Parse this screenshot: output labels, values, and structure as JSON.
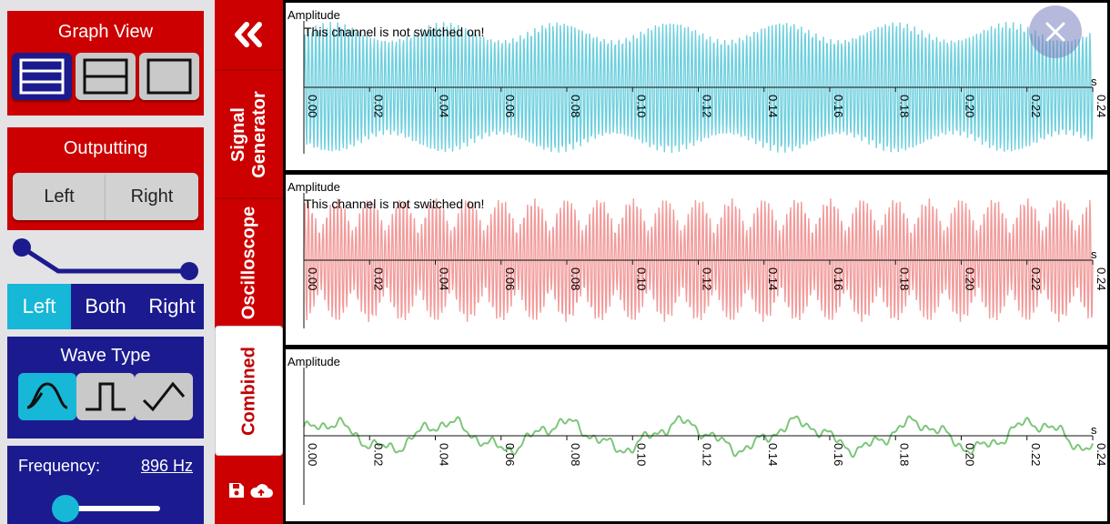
{
  "graph_view": {
    "title": "Graph View",
    "options": [
      "three-graphs",
      "two-graphs",
      "single-graph"
    ],
    "selected": "three-graphs"
  },
  "outputting": {
    "title": "Outputting",
    "left_label": "Left",
    "right_label": "Right"
  },
  "channel": {
    "left_label": "Left",
    "both_label": "Both",
    "right_label": "Right",
    "selected": "Left"
  },
  "wave_type": {
    "title": "Wave Type",
    "options": [
      "sine",
      "square",
      "triangle"
    ],
    "selected": "sine"
  },
  "frequency": {
    "label": "Frequency:",
    "value": "896 Hz",
    "slider_fraction": 0.12
  },
  "tabs": {
    "collapse_icon": "double-chevron-left",
    "signal_generator": "Signal\nGenerator",
    "oscilloscope": "Oscilloscope",
    "combined": "Combined",
    "save_icons": [
      "save-icon",
      "cloud-upload-icon"
    ],
    "active": "Combined"
  },
  "graphs": {
    "amplitude_label": "Amplitude",
    "notice": "This channel is not switched on!",
    "unit": "s",
    "ticks": [
      "0.00",
      "0.02",
      "0.04",
      "0.06",
      "0.08",
      "0.10",
      "0.12",
      "0.14",
      "0.16",
      "0.18",
      "0.20",
      "0.22",
      "0.24"
    ],
    "colors": {
      "top": "#6fd0de",
      "middle": "#f29b9b",
      "bottom": "#7cc67a"
    }
  },
  "chart_data": [
    {
      "type": "line",
      "title": "",
      "ylabel": "Amplitude",
      "xlabel": "s",
      "xlim": [
        0,
        0.24
      ],
      "series": [
        {
          "values": []
        }
      ]
    },
    {
      "type": "line",
      "title": "",
      "ylabel": "Amplitude",
      "xlabel": "s",
      "xlim": [
        0,
        0.24
      ],
      "series": [
        {
          "values": []
        }
      ]
    },
    {
      "type": "line",
      "title": "",
      "ylabel": "Amplitude",
      "xlabel": "s",
      "xlim": [
        0,
        0.24
      ],
      "series": [
        {
          "values": []
        }
      ]
    }
  ]
}
